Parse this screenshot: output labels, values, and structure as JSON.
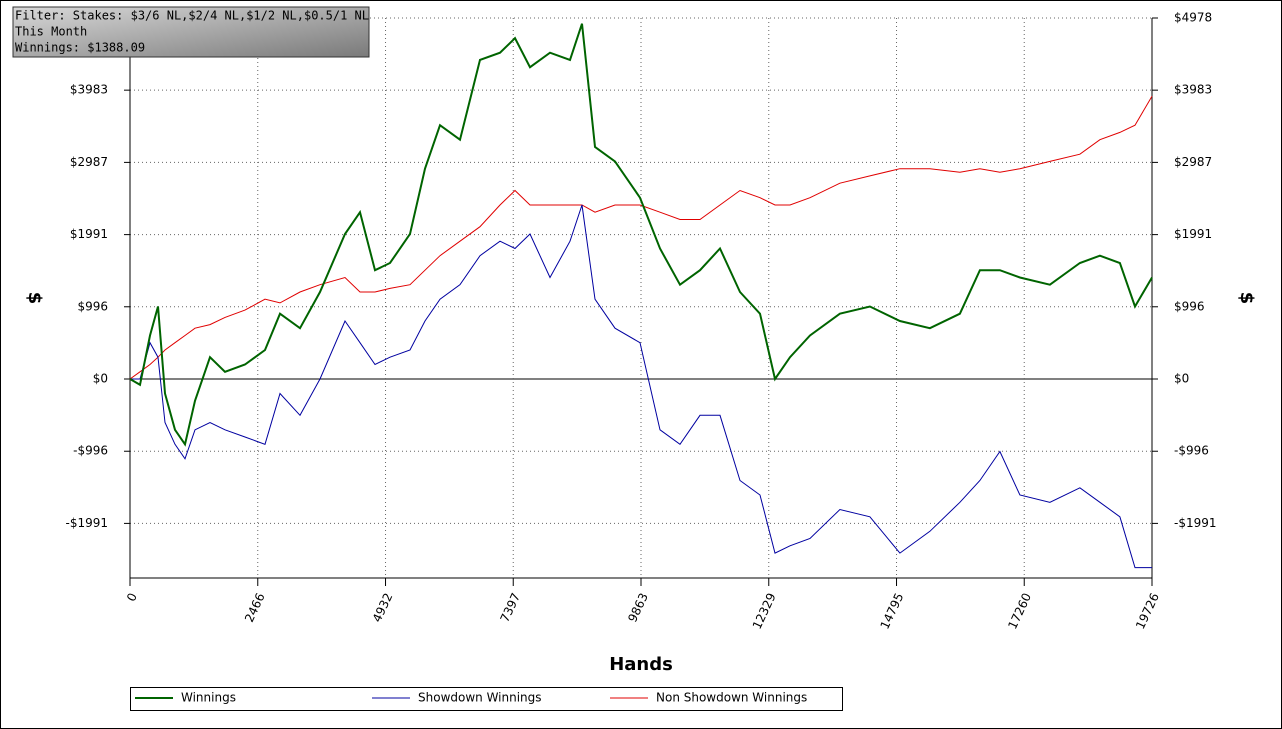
{
  "chart_data": {
    "type": "line",
    "annotations": [
      "Filter: Stakes: $3/6 NL,$2/4 NL,$1/2 NL,$0.5/1 NL",
      "This Month",
      "Winnings: $1388.09"
    ],
    "x_label": "Hands",
    "y_label": "$",
    "x": [
      0,
      193,
      386,
      540,
      676,
      869,
      1062,
      1255,
      1544,
      1834,
      2220,
      2606,
      2895,
      3281,
      3667,
      4150,
      4439,
      4729,
      5018,
      5404,
      5694,
      5983,
      6369,
      6755,
      7141,
      7431,
      7720,
      8106,
      8492,
      8724,
      8975,
      9361,
      9843,
      10229,
      10615,
      11001,
      11387,
      11773,
      12159,
      12449,
      12738,
      13124,
      13703,
      14282,
      14861,
      15440,
      16019,
      16405,
      16791,
      17177,
      17756,
      18335,
      18721,
      19107,
      19397,
      19726
    ],
    "series": [
      {
        "name": "Winnings",
        "color": "#006400",
        "values": [
          0,
          -80,
          600,
          1000,
          -200,
          -700,
          -900,
          -300,
          300,
          100,
          200,
          400,
          900,
          700,
          1200,
          2000,
          2300,
          1500,
          1600,
          2000,
          2900,
          3500,
          3300,
          4400,
          4500,
          4700,
          4300,
          4500,
          4400,
          4900,
          3200,
          3000,
          2500,
          1800,
          1300,
          1500,
          1800,
          1200,
          900,
          0,
          300,
          600,
          900,
          1000,
          800,
          700,
          900,
          1500,
          1500,
          1400,
          1300,
          1600,
          1700,
          1600,
          1000,
          1400
        ]
      },
      {
        "name": "Showdown Winnings",
        "color": "#0000a0",
        "values": [
          0,
          0,
          500,
          300,
          -600,
          -900,
          -1100,
          -700,
          -600,
          -700,
          -800,
          -900,
          -200,
          -500,
          0,
          800,
          500,
          200,
          300,
          400,
          800,
          1100,
          1300,
          1700,
          1900,
          1800,
          2000,
          1400,
          1900,
          2400,
          1100,
          700,
          500,
          -700,
          -900,
          -500,
          -500,
          -1400,
          -1600,
          -2400,
          -2300,
          -2200,
          -1800,
          -1900,
          -2400,
          -2100,
          -1700,
          -1400,
          -1000,
          -1600,
          -1700,
          -1500,
          -1700,
          -1900,
          -2600,
          -2600
        ]
      },
      {
        "name": "Non Showdown Winnings",
        "color": "#e00000",
        "values": [
          0,
          100,
          200,
          300,
          400,
          500,
          600,
          700,
          750,
          850,
          950,
          1100,
          1050,
          1200,
          1300,
          1400,
          1200,
          1200,
          1250,
          1300,
          1500,
          1700,
          1900,
          2100,
          2400,
          2600,
          2400,
          2400,
          2400,
          2400,
          2300,
          2400,
          2400,
          2300,
          2200,
          2200,
          2400,
          2600,
          2500,
          2400,
          2400,
          2500,
          2700,
          2800,
          2900,
          2900,
          2850,
          2900,
          2850,
          2900,
          3000,
          3100,
          3300,
          3400,
          3500,
          3900
        ]
      }
    ],
    "xlim": [
      0,
      19726
    ],
    "xticks": [
      0,
      2466,
      4932,
      7397,
      9863,
      12329,
      14795,
      17260,
      19726
    ],
    "ylim": [
      -2744,
      4978
    ],
    "yticks": [
      {
        "value": -1991,
        "label": "-$1991"
      },
      {
        "value": -996,
        "label": "-$996"
      },
      {
        "value": 0,
        "label": "$0"
      },
      {
        "value": 996,
        "label": "$996"
      },
      {
        "value": 1991,
        "label": "$1991"
      },
      {
        "value": 2987,
        "label": "$2987"
      },
      {
        "value": 3983,
        "label": "$3983"
      },
      {
        "value": 4978,
        "label": "$4978"
      }
    ],
    "grid": true
  }
}
